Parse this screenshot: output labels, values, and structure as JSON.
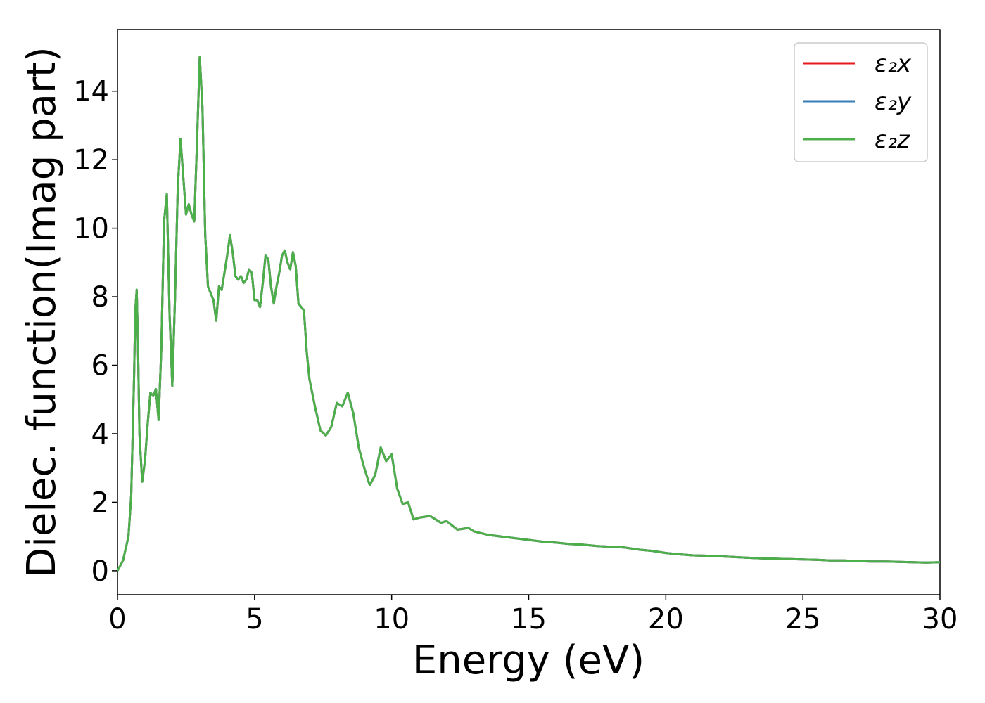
{
  "chart_data": {
    "type": "line",
    "title": "",
    "xlabel": "Energy (eV)",
    "ylabel": "Dielec. function(Imag part)",
    "xlim": [
      0,
      30
    ],
    "ylim": [
      -0.7,
      15.8
    ],
    "xticks": [
      0,
      5,
      10,
      15,
      20,
      25,
      30
    ],
    "yticks": [
      0,
      2,
      4,
      6,
      8,
      10,
      12,
      14
    ],
    "grid": false,
    "legend_position": "top-right",
    "colors": {
      "x": "#e41a1c",
      "y": "#377eb8",
      "z": "#4daf4a"
    },
    "legend": [
      "ε₂x",
      "ε₂y",
      "ε₂z"
    ],
    "x": [
      0,
      0.2,
      0.4,
      0.5,
      0.6,
      0.65,
      0.7,
      0.75,
      0.8,
      0.9,
      1.0,
      1.1,
      1.2,
      1.3,
      1.4,
      1.5,
      1.6,
      1.7,
      1.8,
      1.9,
      2.0,
      2.1,
      2.2,
      2.3,
      2.4,
      2.5,
      2.6,
      2.7,
      2.8,
      2.9,
      3.0,
      3.1,
      3.2,
      3.3,
      3.5,
      3.6,
      3.7,
      3.8,
      3.9,
      4.0,
      4.1,
      4.2,
      4.3,
      4.4,
      4.5,
      4.6,
      4.7,
      4.8,
      4.9,
      5.0,
      5.1,
      5.2,
      5.3,
      5.4,
      5.5,
      5.6,
      5.7,
      5.8,
      5.9,
      6.0,
      6.1,
      6.2,
      6.3,
      6.4,
      6.5,
      6.6,
      6.7,
      6.8,
      6.9,
      7.0,
      7.2,
      7.4,
      7.6,
      7.8,
      8.0,
      8.2,
      8.4,
      8.6,
      8.8,
      9.0,
      9.2,
      9.4,
      9.6,
      9.7,
      9.8,
      10.0,
      10.2,
      10.4,
      10.6,
      10.8,
      11.0,
      11.4,
      11.8,
      12.0,
      12.4,
      12.8,
      13.0,
      13.5,
      14.0,
      14.5,
      15.0,
      15.5,
      16.0,
      16.5,
      17.0,
      17.5,
      18.0,
      18.5,
      19.0,
      19.5,
      20.0,
      20.5,
      21.0,
      21.5,
      22.0,
      22.5,
      23.0,
      23.5,
      24.0,
      24.5,
      25.0,
      25.5,
      26.0,
      26.5,
      27.0,
      27.5,
      28.0,
      28.5,
      29.0,
      29.5,
      30.0
    ],
    "y": [
      0.0,
      0.3,
      1.0,
      2.2,
      5.5,
      7.6,
      8.2,
      6.5,
      4.0,
      2.6,
      3.2,
      4.3,
      5.2,
      5.1,
      5.3,
      4.4,
      6.5,
      10.2,
      11.0,
      7.5,
      5.4,
      8.0,
      11.2,
      12.6,
      11.5,
      10.4,
      10.7,
      10.4,
      10.2,
      12.5,
      15.0,
      13.5,
      9.8,
      8.3,
      7.9,
      7.3,
      8.3,
      8.2,
      8.7,
      9.2,
      9.8,
      9.3,
      8.6,
      8.5,
      8.6,
      8.4,
      8.5,
      8.8,
      8.7,
      7.9,
      7.9,
      7.7,
      8.4,
      9.2,
      9.1,
      8.3,
      7.8,
      8.3,
      8.7,
      9.2,
      9.35,
      9.0,
      8.8,
      9.3,
      8.9,
      7.8,
      7.7,
      7.6,
      6.4,
      5.6,
      4.8,
      4.1,
      3.95,
      4.2,
      4.9,
      4.8,
      5.2,
      4.6,
      3.6,
      3.0,
      2.5,
      2.8,
      3.6,
      3.4,
      3.2,
      3.4,
      2.4,
      1.95,
      2.0,
      1.5,
      1.55,
      1.6,
      1.4,
      1.45,
      1.2,
      1.25,
      1.15,
      1.05,
      1.0,
      0.95,
      0.9,
      0.85,
      0.82,
      0.78,
      0.76,
      0.72,
      0.7,
      0.68,
      0.62,
      0.58,
      0.52,
      0.48,
      0.45,
      0.44,
      0.42,
      0.4,
      0.38,
      0.36,
      0.35,
      0.34,
      0.33,
      0.32,
      0.3,
      0.3,
      0.28,
      0.27,
      0.27,
      0.26,
      0.25,
      0.24,
      0.25
    ],
    "series": [
      {
        "name": "ε₂x",
        "key": "x"
      },
      {
        "name": "ε₂y",
        "key": "y"
      },
      {
        "name": "ε₂z",
        "key": "z"
      }
    ]
  }
}
